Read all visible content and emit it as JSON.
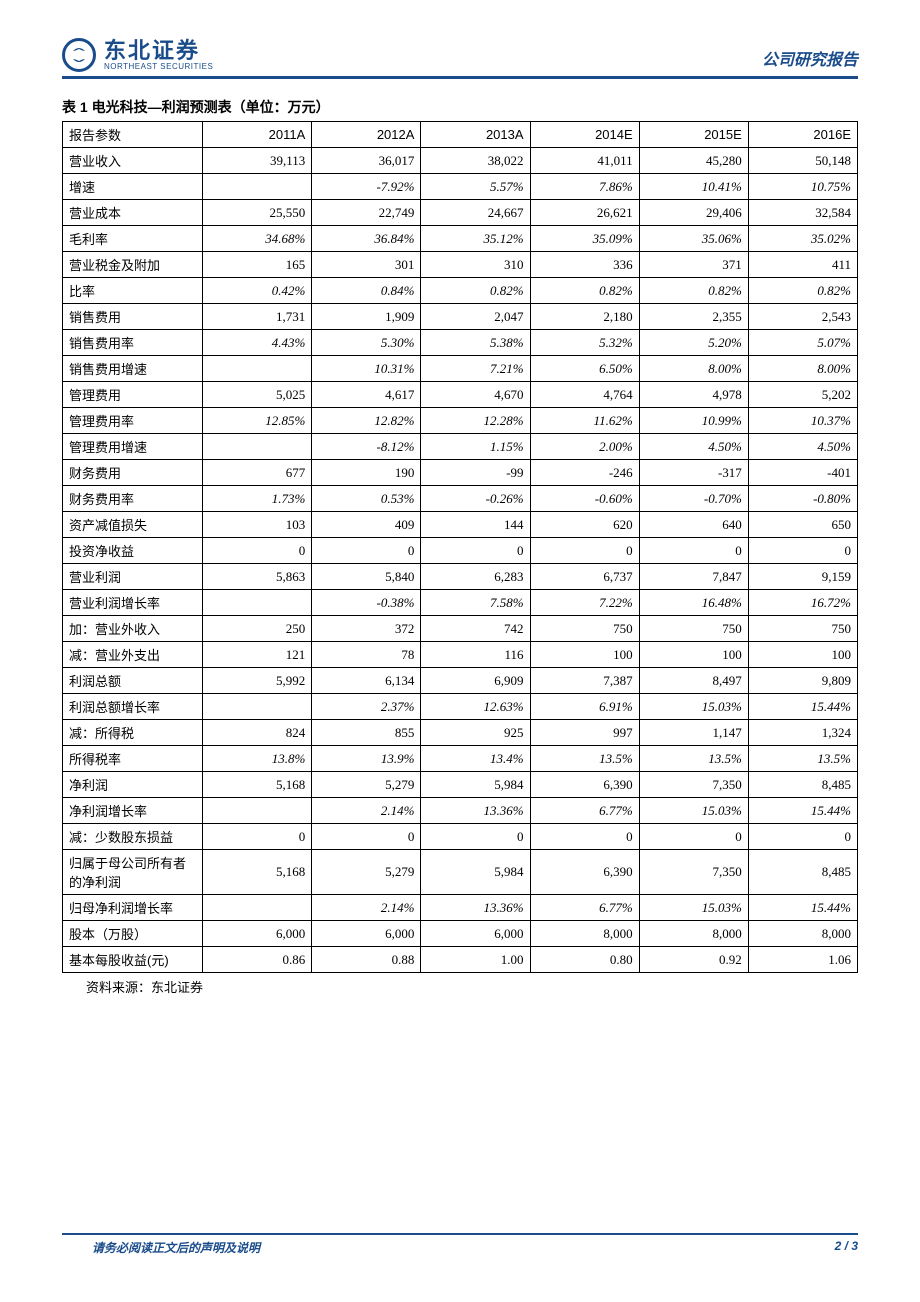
{
  "header": {
    "logo_cn": "东北证券",
    "logo_en": "NORTHEAST SECURITIES",
    "right": "公司研究报告"
  },
  "table": {
    "title": "表 1 电光科技—利润预测表（单位：万元）",
    "columns": [
      "报告参数",
      "2011A",
      "2012A",
      "2013A",
      "2014E",
      "2015E",
      "2016E"
    ],
    "rows": [
      {
        "label": "营业收入",
        "v": [
          "39,113",
          "36,017",
          "38,022",
          "41,011",
          "45,280",
          "50,148"
        ],
        "italic": false
      },
      {
        "label": "增速",
        "v": [
          "",
          "-7.92%",
          "5.57%",
          "7.86%",
          "10.41%",
          "10.75%"
        ],
        "italic": true
      },
      {
        "label": "营业成本",
        "v": [
          "25,550",
          "22,749",
          "24,667",
          "26,621",
          "29,406",
          "32,584"
        ],
        "italic": false
      },
      {
        "label": "毛利率",
        "v": [
          "34.68%",
          "36.84%",
          "35.12%",
          "35.09%",
          "35.06%",
          "35.02%"
        ],
        "italic": true
      },
      {
        "label": "营业税金及附加",
        "v": [
          "165",
          "301",
          "310",
          "336",
          "371",
          "411"
        ],
        "italic": false
      },
      {
        "label": "比率",
        "v": [
          "0.42%",
          "0.84%",
          "0.82%",
          "0.82%",
          "0.82%",
          "0.82%"
        ],
        "italic": true
      },
      {
        "label": "销售费用",
        "v": [
          "1,731",
          "1,909",
          "2,047",
          "2,180",
          "2,355",
          "2,543"
        ],
        "italic": false
      },
      {
        "label": "销售费用率",
        "v": [
          "4.43%",
          "5.30%",
          "5.38%",
          "5.32%",
          "5.20%",
          "5.07%"
        ],
        "italic": true
      },
      {
        "label": "销售费用增速",
        "v": [
          "",
          "10.31%",
          "7.21%",
          "6.50%",
          "8.00%",
          "8.00%"
        ],
        "italic": true
      },
      {
        "label": "管理费用",
        "v": [
          "5,025",
          "4,617",
          "4,670",
          "4,764",
          "4,978",
          "5,202"
        ],
        "italic": false
      },
      {
        "label": "管理费用率",
        "v": [
          "12.85%",
          "12.82%",
          "12.28%",
          "11.62%",
          "10.99%",
          "10.37%"
        ],
        "italic": true
      },
      {
        "label": "管理费用增速",
        "v": [
          "",
          "-8.12%",
          "1.15%",
          "2.00%",
          "4.50%",
          "4.50%"
        ],
        "italic": true
      },
      {
        "label": "财务费用",
        "v": [
          "677",
          "190",
          "-99",
          "-246",
          "-317",
          "-401"
        ],
        "italic": false
      },
      {
        "label": "财务费用率",
        "v": [
          "1.73%",
          "0.53%",
          "-0.26%",
          "-0.60%",
          "-0.70%",
          "-0.80%"
        ],
        "italic": true
      },
      {
        "label": "资产减值损失",
        "v": [
          "103",
          "409",
          "144",
          "620",
          "640",
          "650"
        ],
        "italic": false
      },
      {
        "label": "投资净收益",
        "v": [
          "0",
          "0",
          "0",
          "0",
          "0",
          "0"
        ],
        "italic": false
      },
      {
        "label": "营业利润",
        "v": [
          "5,863",
          "5,840",
          "6,283",
          "6,737",
          "7,847",
          "9,159"
        ],
        "italic": false
      },
      {
        "label": "营业利润增长率",
        "v": [
          "",
          "-0.38%",
          "7.58%",
          "7.22%",
          "16.48%",
          "16.72%"
        ],
        "italic": true
      },
      {
        "label": "加：营业外收入",
        "v": [
          "250",
          "372",
          "742",
          "750",
          "750",
          "750"
        ],
        "italic": false
      },
      {
        "label": "减：营业外支出",
        "v": [
          "121",
          "78",
          "116",
          "100",
          "100",
          "100"
        ],
        "italic": false
      },
      {
        "label": "利润总额",
        "v": [
          "5,992",
          "6,134",
          "6,909",
          "7,387",
          "8,497",
          "9,809"
        ],
        "italic": false
      },
      {
        "label": "利润总额增长率",
        "v": [
          "",
          "2.37%",
          "12.63%",
          "6.91%",
          "15.03%",
          "15.44%"
        ],
        "italic": true
      },
      {
        "label": "减：所得税",
        "v": [
          "824",
          "855",
          "925",
          "997",
          "1,147",
          "1,324"
        ],
        "italic": false
      },
      {
        "label": "所得税率",
        "v": [
          "13.8%",
          "13.9%",
          "13.4%",
          "13.5%",
          "13.5%",
          "13.5%"
        ],
        "italic": true
      },
      {
        "label": "净利润",
        "v": [
          "5,168",
          "5,279",
          "5,984",
          "6,390",
          "7,350",
          "8,485"
        ],
        "italic": false
      },
      {
        "label": "净利润增长率",
        "v": [
          "",
          "2.14%",
          "13.36%",
          "6.77%",
          "15.03%",
          "15.44%"
        ],
        "italic": true
      },
      {
        "label": "减：少数股东损益",
        "v": [
          "0",
          "0",
          "0",
          "0",
          "0",
          "0"
        ],
        "italic": false
      },
      {
        "label": "归属于母公司所有者的净利润",
        "v": [
          "5,168",
          "5,279",
          "5,984",
          "6,390",
          "7,350",
          "8,485"
        ],
        "italic": false
      },
      {
        "label": "归母净利润增长率",
        "v": [
          "",
          "2.14%",
          "13.36%",
          "6.77%",
          "15.03%",
          "15.44%"
        ],
        "italic": true
      },
      {
        "label": "股本（万股）",
        "v": [
          "6,000",
          "6,000",
          "6,000",
          "8,000",
          "8,000",
          "8,000"
        ],
        "italic": false
      },
      {
        "label": "基本每股收益(元)",
        "v": [
          "0.86",
          "0.88",
          "1.00",
          "0.80",
          "0.92",
          "1.06"
        ],
        "italic": false
      }
    ],
    "source": "资料来源：东北证券"
  },
  "footer": {
    "left": "请务必阅读正文后的声明及说明",
    "right": "2 / 3"
  }
}
